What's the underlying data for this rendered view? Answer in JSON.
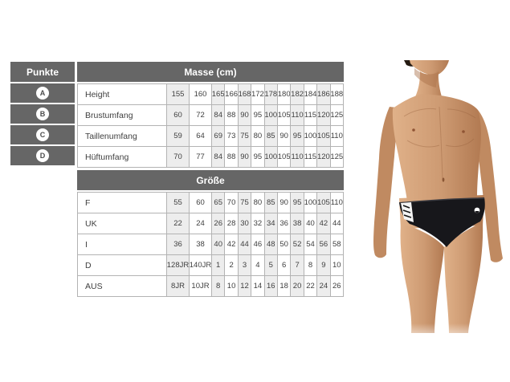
{
  "colors": {
    "header_bg": "#666666",
    "header_text": "#ffffff",
    "cell_shade": "#ededed",
    "grid_border": "#b3b3b3",
    "text": "#404040",
    "badge_bg": "#ffffff",
    "badge_text": "#4d4d4d"
  },
  "points_column": {
    "header": "Punkte",
    "items": [
      "A",
      "B",
      "C",
      "D"
    ]
  },
  "measurements_table": {
    "header": "Masse (cm)",
    "rows": [
      {
        "label": "Height",
        "values": [
          "155",
          "160",
          "165",
          "166",
          "168",
          "172",
          "178",
          "180",
          "182",
          "184",
          "186",
          "188"
        ]
      },
      {
        "label": "Brustumfang",
        "values": [
          "60",
          "72",
          "84",
          "88",
          "90",
          "95",
          "100",
          "105",
          "110",
          "115",
          "120",
          "125"
        ]
      },
      {
        "label": "Taillenumfang",
        "values": [
          "59",
          "64",
          "69",
          "73",
          "75",
          "80",
          "85",
          "90",
          "95",
          "100",
          "105",
          "110"
        ]
      },
      {
        "label": "Hüftumfang",
        "values": [
          "70",
          "77",
          "84",
          "88",
          "90",
          "95",
          "100",
          "105",
          "110",
          "115",
          "120",
          "125"
        ]
      }
    ]
  },
  "size_table": {
    "header": "Größe",
    "rows": [
      {
        "label": "F",
        "values": [
          "55",
          "60",
          "65",
          "70",
          "75",
          "80",
          "85",
          "90",
          "95",
          "100",
          "105",
          "110"
        ]
      },
      {
        "label": "UK",
        "values": [
          "22",
          "24",
          "26",
          "28",
          "30",
          "32",
          "34",
          "36",
          "38",
          "40",
          "42",
          "44"
        ]
      },
      {
        "label": "I",
        "values": [
          "36",
          "38",
          "40",
          "42",
          "44",
          "46",
          "48",
          "50",
          "52",
          "54",
          "56",
          "58"
        ]
      },
      {
        "label": "D",
        "values": [
          "128JR",
          "140JR",
          "1",
          "2",
          "3",
          "4",
          "5",
          "6",
          "7",
          "8",
          "9",
          "10"
        ]
      },
      {
        "label": "AUS",
        "values": [
          "8JR",
          "10JR",
          "8",
          "10",
          "12",
          "14",
          "16",
          "18",
          "20",
          "22",
          "24",
          "26"
        ]
      }
    ]
  },
  "photo": {
    "name": "model-wearing-black-swim-briefs",
    "briefs_color": "#17171b",
    "skin_tone": "#cd9a72"
  }
}
